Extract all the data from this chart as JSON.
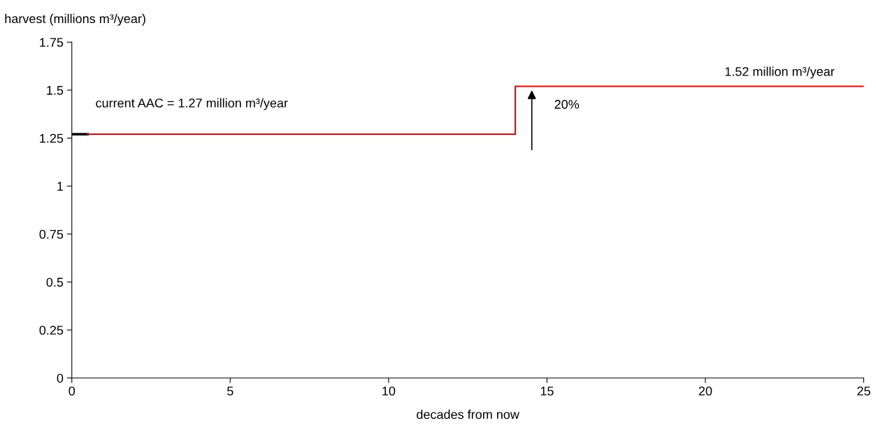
{
  "chart_data": {
    "type": "step",
    "xlabel": "decades from now",
    "ylabel": "harvest (millions m³/year)",
    "series": [
      {
        "type": "line",
        "color": "#000000",
        "x": [
          0,
          0.5
        ],
        "values": [
          1.27,
          1.27
        ]
      },
      {
        "color": "#ff0000",
        "x": [
          0.5,
          14,
          25
        ],
        "values": [
          1.27,
          1.52,
          1.52
        ]
      }
    ],
    "xlim": [
      0,
      25
    ],
    "xticks": [
      0,
      5,
      10,
      15,
      20,
      25
    ],
    "ylim": [
      0,
      1.75
    ],
    "yticks": [
      0,
      0.25,
      0.5,
      0.75,
      1,
      1.25,
      1.5,
      1.75
    ],
    "annotations": [
      {
        "text": "current AAC = 1.27 million m³/year",
        "x": 0.5,
        "y": 1.27
      },
      {
        "text": "1.52 million m³/year",
        "x": 25,
        "y": 1.52
      },
      "20%"
    ],
    "grid": false,
    "legend": false
  }
}
